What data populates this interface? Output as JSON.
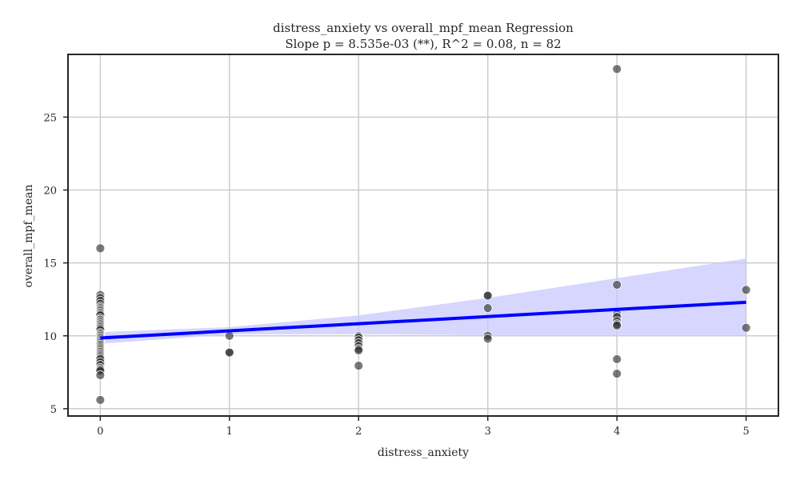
{
  "chart_data": {
    "type": "scatter",
    "title": "distress_anxiety vs overall_mpf_mean Regression",
    "subtitle": "Slope p = 8.535e-03 (**), R^2 = 0.08, n = 82",
    "xlabel": "distress_anxiety",
    "ylabel": "overall_mpf_mean",
    "xlim": [
      -0.25,
      5.25
    ],
    "ylim": [
      4.5,
      29.3
    ],
    "xticks": [
      0,
      1,
      2,
      3,
      4,
      5
    ],
    "yticks": [
      5,
      10,
      15,
      20,
      25
    ],
    "grid": true,
    "colors": {
      "points": "#333333",
      "regression_line": "#0000ff",
      "confidence_band": "#c8c8ff",
      "grid": "#cccccc",
      "axes": "#262626"
    },
    "points": [
      [
        0,
        16.0
      ],
      [
        0,
        12.8
      ],
      [
        0,
        12.6
      ],
      [
        0,
        12.4
      ],
      [
        0,
        12.2
      ],
      [
        0,
        12.0
      ],
      [
        0,
        11.9
      ],
      [
        0,
        11.8
      ],
      [
        0,
        11.7
      ],
      [
        0,
        11.6
      ],
      [
        0,
        11.5
      ],
      [
        0,
        11.4
      ],
      [
        0,
        11.2
      ],
      [
        0,
        11.1
      ],
      [
        0,
        11.0
      ],
      [
        0,
        10.9
      ],
      [
        0,
        10.8
      ],
      [
        0,
        10.7
      ],
      [
        0,
        10.6
      ],
      [
        0,
        10.5
      ],
      [
        0,
        10.4
      ],
      [
        0,
        10.2
      ],
      [
        0,
        10.1
      ],
      [
        0,
        10.0
      ],
      [
        0,
        9.9
      ],
      [
        0,
        9.8
      ],
      [
        0,
        9.7
      ],
      [
        0,
        9.6
      ],
      [
        0,
        9.5
      ],
      [
        0,
        9.4
      ],
      [
        0,
        9.3
      ],
      [
        0,
        9.2
      ],
      [
        0,
        9.1
      ],
      [
        0,
        9.0
      ],
      [
        0,
        8.9
      ],
      [
        0,
        8.8
      ],
      [
        0,
        8.7
      ],
      [
        0,
        8.6
      ],
      [
        0,
        8.5
      ],
      [
        0,
        8.4
      ],
      [
        0,
        8.2
      ],
      [
        0,
        8.0
      ],
      [
        0,
        7.8
      ],
      [
        0,
        7.7
      ],
      [
        0,
        7.6
      ],
      [
        0,
        7.3
      ],
      [
        0,
        5.6
      ],
      [
        1,
        10.0
      ],
      [
        1,
        8.9
      ],
      [
        1,
        8.85
      ],
      [
        2,
        10.0
      ],
      [
        2,
        9.9
      ],
      [
        2,
        9.7
      ],
      [
        2,
        9.5
      ],
      [
        2,
        9.3
      ],
      [
        2,
        9.1
      ],
      [
        2,
        9.0
      ],
      [
        2,
        7.95
      ],
      [
        3,
        12.8
      ],
      [
        3,
        12.75
      ],
      [
        3,
        11.9
      ],
      [
        3,
        10.0
      ],
      [
        3,
        9.8
      ],
      [
        4,
        28.3
      ],
      [
        4,
        13.5
      ],
      [
        4,
        11.5
      ],
      [
        4,
        11.3
      ],
      [
        4,
        11.0
      ],
      [
        4,
        10.8
      ],
      [
        4,
        10.7
      ],
      [
        4,
        8.4
      ],
      [
        4,
        7.4
      ],
      [
        5,
        13.15
      ],
      [
        5,
        10.55
      ]
    ],
    "regression": {
      "x_start": 0,
      "x_end": 5,
      "y_start": 9.85,
      "y_end": 12.3
    },
    "confidence_band": {
      "x": [
        0,
        1,
        2,
        3,
        4,
        5
      ],
      "lower": [
        9.45,
        10.1,
        10.1,
        10.05,
        10.05,
        10.05
      ],
      "upper": [
        10.25,
        10.6,
        11.4,
        12.6,
        13.95,
        15.3
      ]
    }
  }
}
